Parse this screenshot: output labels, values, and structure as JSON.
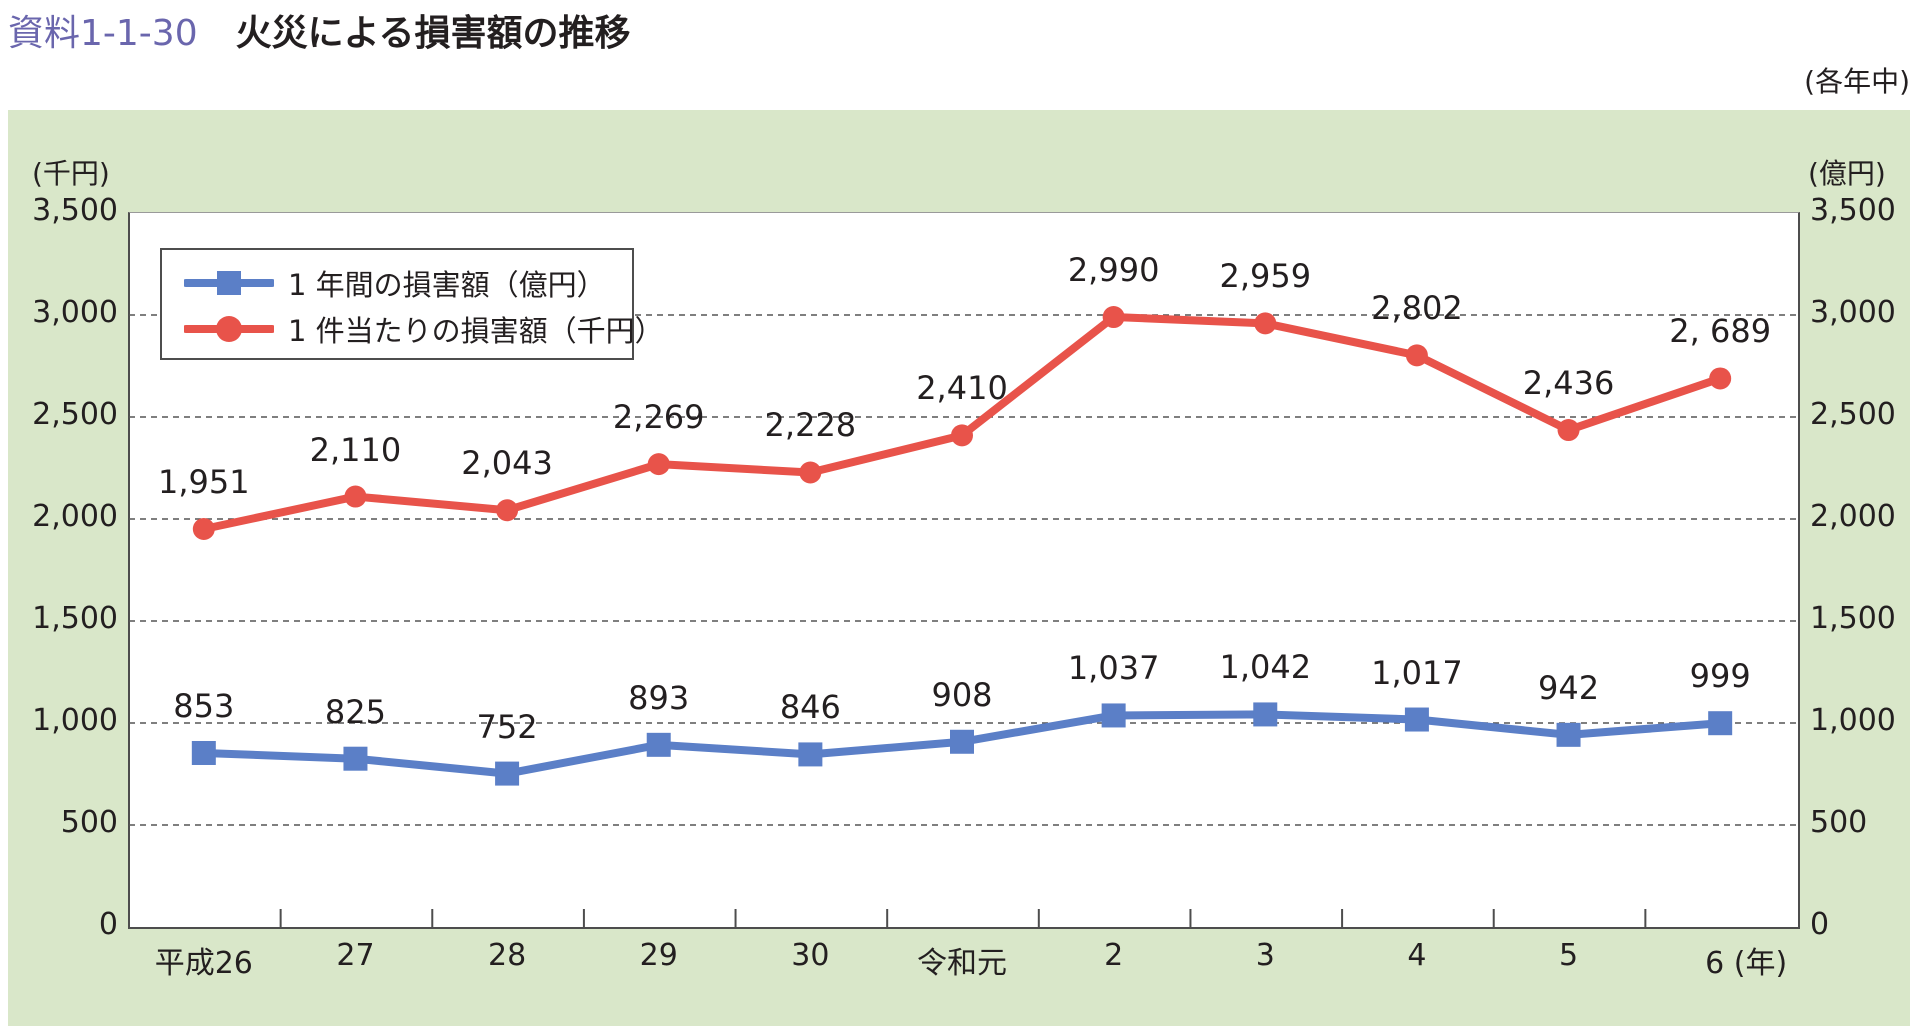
{
  "header": {
    "figure_number": "資料1-1-30",
    "title": "火災による損害額の推移",
    "note": "(各年中)"
  },
  "axes": {
    "left_unit": "(千円)",
    "right_unit": "(億円)",
    "left_ticks": [
      "3,500",
      "3,000",
      "2,500",
      "2,000",
      "1,500",
      "1,000",
      "500",
      "0"
    ],
    "right_ticks": [
      "3,500",
      "3,000",
      "2,500",
      "2,000",
      "1,500",
      "1,000",
      "500",
      "0"
    ],
    "x_labels": [
      "平成26",
      "27",
      "28",
      "29",
      "30",
      "令和元",
      "2",
      "3",
      "4",
      "5",
      "6 (年)"
    ]
  },
  "legend": {
    "items": [
      {
        "label": "1 年間の損害額（億円）",
        "color": "#5b7fc7",
        "marker": "square"
      },
      {
        "label": "1 件当たりの損害額（千円）",
        "color": "#e8534a",
        "marker": "circle"
      }
    ]
  },
  "labels": {
    "annual": [
      "853",
      "825",
      "752",
      "893",
      "846",
      "908",
      "1,037",
      "1,042",
      "1,017",
      "942",
      "999"
    ],
    "per_case": [
      "1,951",
      "2,110",
      "2,043",
      "2,269",
      "2,228",
      "2,410",
      "2,990",
      "2,959",
      "2,802",
      "2,436",
      "2, 689"
    ]
  },
  "colors": {
    "panel_bg": "#d9e7c9",
    "annual_series": "#5b7fc7",
    "per_case_series": "#e8534a",
    "title_number": "#6a66ad"
  },
  "chart_data": {
    "type": "line",
    "title": "火災による損害額の推移",
    "subtitle": "(各年中)",
    "categories": [
      "平成26",
      "27",
      "28",
      "29",
      "30",
      "令和元",
      "2",
      "3",
      "4",
      "5",
      "6"
    ],
    "xlabel": "(年)",
    "ylabel_left": "(千円)",
    "ylabel_right": "(億円)",
    "ylim": [
      0,
      3500
    ],
    "yticks": [
      0,
      500,
      1000,
      1500,
      2000,
      2500,
      3000,
      3500
    ],
    "grid": "horizontal dashed",
    "legend_position": "upper left inside",
    "series": [
      {
        "name": "1 年間の損害額（億円）",
        "axis": "right",
        "marker": "square",
        "color": "#5b7fc7",
        "values": [
          853,
          825,
          752,
          893,
          846,
          908,
          1037,
          1042,
          1017,
          942,
          999
        ]
      },
      {
        "name": "1 件当たりの損害額（千円）",
        "axis": "left",
        "marker": "circle",
        "color": "#e8534a",
        "values": [
          1951,
          2110,
          2043,
          2269,
          2228,
          2410,
          2990,
          2959,
          2802,
          2436,
          2689
        ]
      }
    ]
  }
}
